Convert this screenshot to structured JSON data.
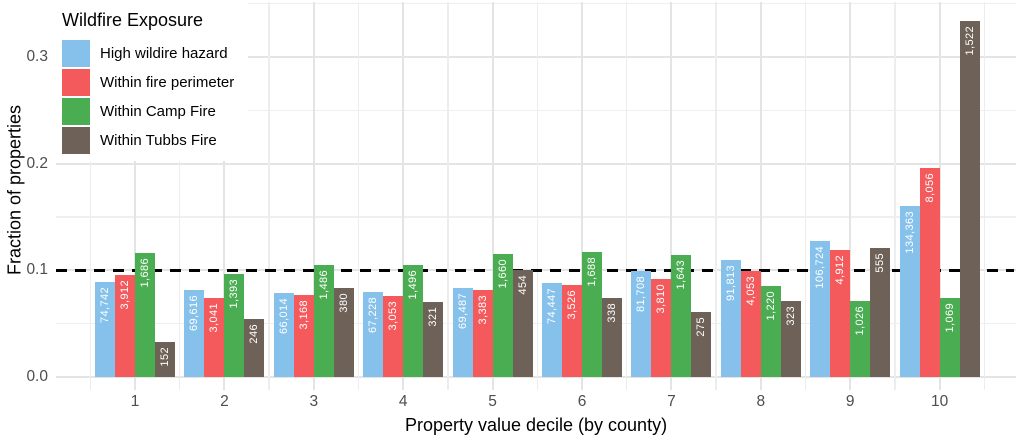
{
  "chart_data": {
    "type": "bar",
    "title": "",
    "xlabel": "Property value decile (by county)",
    "ylabel": "Fraction of properties",
    "legend_title": "Wildfire Exposure",
    "legend_position": "top-left-inside",
    "grid": "on",
    "categories": [
      "1",
      "2",
      "3",
      "4",
      "5",
      "6",
      "7",
      "8",
      "9",
      "10"
    ],
    "y_ticks": [
      {
        "value": 0.0,
        "label": "0.0"
      },
      {
        "value": 0.1,
        "label": "0.1"
      },
      {
        "value": 0.2,
        "label": "0.2"
      },
      {
        "value": 0.3,
        "label": "0.3"
      }
    ],
    "y_minor_ticks": [
      0.05,
      0.15,
      0.25,
      0.35
    ],
    "ylim": [
      0,
      0.352
    ],
    "reference_line": {
      "value": 0.1,
      "style": "dashed",
      "color": "#000000"
    },
    "series": [
      {
        "name": "High wildire hazard",
        "color": "#85C1EB",
        "values": [
          0.089,
          0.082,
          0.079,
          0.08,
          0.083,
          0.088,
          0.099,
          0.11,
          0.127,
          0.16
        ],
        "bar_labels": [
          "74,742",
          "69,616",
          "66,014",
          "67,228",
          "69,487",
          "74,447",
          "81,708",
          "91,813",
          "106,724",
          "134,363"
        ]
      },
      {
        "name": "Within fire perimeter",
        "color": "#F4595C",
        "values": [
          0.096,
          0.074,
          0.077,
          0.076,
          0.082,
          0.086,
          0.092,
          0.099,
          0.119,
          0.196
        ],
        "bar_labels": [
          "3,912",
          "3,041",
          "3,168",
          "3,053",
          "3,383",
          "3,526",
          "3,810",
          "4,053",
          "4,912",
          "8,056"
        ]
      },
      {
        "name": "Within Camp Fire",
        "color": "#4BAD52",
        "values": [
          0.116,
          0.097,
          0.105,
          0.105,
          0.115,
          0.117,
          0.114,
          0.085,
          0.071,
          0.074
        ],
        "bar_labels": [
          "1,686",
          "1,393",
          "1,486",
          "1,496",
          "1,660",
          "1,688",
          "1,643",
          "1,220",
          "1,026",
          "1,069"
        ]
      },
      {
        "name": "Within Tubbs Fire",
        "color": "#6E6157",
        "values": [
          0.033,
          0.054,
          0.083,
          0.07,
          0.1,
          0.074,
          0.061,
          0.071,
          0.121,
          0.334
        ],
        "bar_labels": [
          "152",
          "246",
          "380",
          "321",
          "454",
          "338",
          "275",
          "323",
          "555",
          "1,522"
        ]
      }
    ]
  }
}
